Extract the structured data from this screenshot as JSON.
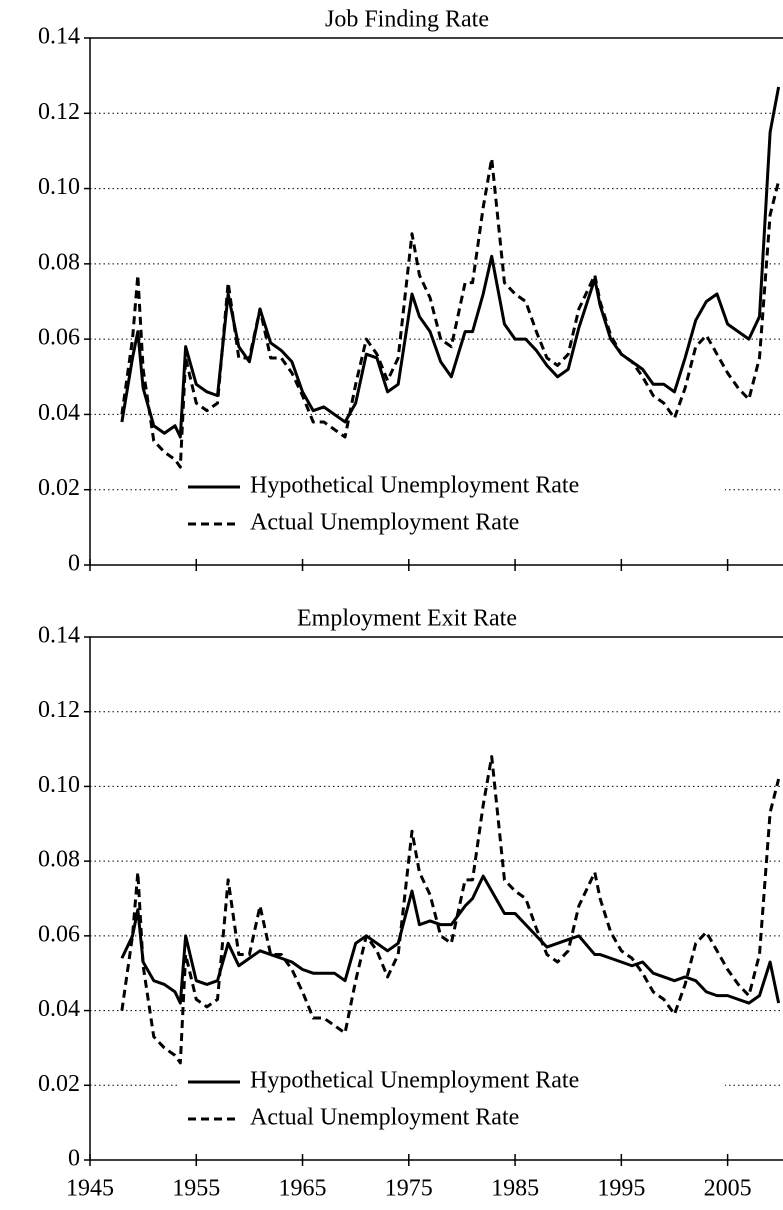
{
  "chart_data": [
    {
      "type": "line",
      "title": "Job Finding Rate",
      "x": [
        1948,
        1949,
        1949.5,
        1950,
        1951,
        1952,
        1953,
        1953.5,
        1954,
        1955,
        1956,
        1957,
        1958,
        1959,
        1960,
        1961,
        1962,
        1963,
        1964,
        1965,
        1966,
        1967,
        1968,
        1969,
        1970,
        1971,
        1972,
        1973,
        1974,
        1975.3,
        1976,
        1977,
        1978,
        1979,
        1980.3,
        1981,
        1982,
        1982.8,
        1984,
        1985,
        1986,
        1987,
        1988,
        1989,
        1990,
        1991,
        1992.5,
        1993,
        1994,
        1995,
        1996,
        1997,
        1998,
        1999,
        2000,
        2001,
        2002,
        2003,
        2004,
        2005,
        2006,
        2007,
        2008,
        2009,
        2009.8
      ],
      "series": [
        {
          "name": "Hypothetical Unemployment Rate",
          "color": "#000000",
          "style": "solid",
          "values": [
            0.038,
            0.055,
            0.062,
            0.047,
            0.037,
            0.035,
            0.037,
            0.034,
            0.058,
            0.048,
            0.046,
            0.045,
            0.072,
            0.058,
            0.054,
            0.068,
            0.059,
            0.057,
            0.054,
            0.046,
            0.041,
            0.042,
            0.04,
            0.038,
            0.043,
            0.056,
            0.055,
            0.046,
            0.048,
            0.072,
            0.066,
            0.062,
            0.054,
            0.05,
            0.062,
            0.062,
            0.072,
            0.082,
            0.064,
            0.06,
            0.06,
            0.057,
            0.053,
            0.05,
            0.052,
            0.063,
            0.076,
            0.069,
            0.06,
            0.056,
            0.054,
            0.052,
            0.048,
            0.048,
            0.046,
            0.055,
            0.065,
            0.07,
            0.072,
            0.064,
            0.062,
            0.06,
            0.066,
            0.115,
            0.127
          ]
        },
        {
          "name": "Actual Unemployment Rate",
          "color": "#000000",
          "style": "dashed",
          "values": [
            0.04,
            0.06,
            0.077,
            0.052,
            0.033,
            0.03,
            0.028,
            0.026,
            0.055,
            0.043,
            0.041,
            0.043,
            0.075,
            0.055,
            0.055,
            0.068,
            0.055,
            0.055,
            0.051,
            0.045,
            0.038,
            0.038,
            0.036,
            0.034,
            0.048,
            0.06,
            0.056,
            0.049,
            0.055,
            0.088,
            0.077,
            0.071,
            0.06,
            0.058,
            0.075,
            0.075,
            0.095,
            0.108,
            0.075,
            0.072,
            0.07,
            0.062,
            0.055,
            0.053,
            0.056,
            0.068,
            0.077,
            0.07,
            0.061,
            0.056,
            0.054,
            0.05,
            0.045,
            0.043,
            0.039,
            0.047,
            0.058,
            0.061,
            0.056,
            0.051,
            0.047,
            0.044,
            0.055,
            0.093,
            0.102
          ]
        }
      ],
      "xlim": [
        1945,
        2012
      ],
      "xticks": [
        1945,
        1955,
        1965,
        1975,
        1985,
        1995,
        2005
      ],
      "show_xtick_labels": false,
      "ylim": [
        0,
        0.14
      ],
      "yticks": [
        0,
        0.02,
        0.04,
        0.06,
        0.08,
        {
          "value": 0.1,
          "label": "0.10"
        },
        0.12,
        0.14
      ],
      "grid": true
    },
    {
      "type": "line",
      "title": "Employment Exit Rate",
      "x": [
        1948,
        1949,
        1949.5,
        1950,
        1951,
        1952,
        1953,
        1953.5,
        1954,
        1955,
        1956,
        1957,
        1958,
        1959,
        1960,
        1961,
        1962,
        1963,
        1964,
        1965,
        1966,
        1967,
        1968,
        1969,
        1970,
        1971,
        1972,
        1973,
        1974,
        1975.3,
        1976,
        1977,
        1978,
        1979,
        1980.3,
        1981,
        1982,
        1982.8,
        1984,
        1985,
        1986,
        1987,
        1988,
        1989,
        1990,
        1991,
        1992.5,
        1993,
        1994,
        1995,
        1996,
        1997,
        1998,
        1999,
        2000,
        2001,
        2002,
        2003,
        2004,
        2005,
        2006,
        2007,
        2008,
        2009,
        2009.8
      ],
      "series": [
        {
          "name": "Hypothetical Unemployment Rate",
          "color": "#000000",
          "style": "solid",
          "values": [
            0.054,
            0.06,
            0.067,
            0.053,
            0.048,
            0.047,
            0.045,
            0.042,
            0.06,
            0.048,
            0.047,
            0.048,
            0.058,
            0.052,
            0.054,
            0.056,
            0.055,
            0.054,
            0.053,
            0.051,
            0.05,
            0.05,
            0.05,
            0.048,
            0.058,
            0.06,
            0.058,
            0.056,
            0.058,
            0.072,
            0.063,
            0.064,
            0.063,
            0.063,
            0.068,
            0.07,
            0.076,
            0.072,
            0.066,
            0.066,
            0.063,
            0.06,
            0.057,
            0.058,
            0.059,
            0.06,
            0.055,
            0.055,
            0.054,
            0.053,
            0.052,
            0.053,
            0.05,
            0.049,
            0.048,
            0.049,
            0.048,
            0.045,
            0.044,
            0.044,
            0.043,
            0.042,
            0.044,
            0.053,
            0.042
          ]
        },
        {
          "name": "Actual Unemployment Rate",
          "color": "#000000",
          "style": "dashed",
          "values": [
            0.04,
            0.06,
            0.077,
            0.052,
            0.033,
            0.03,
            0.028,
            0.026,
            0.055,
            0.043,
            0.041,
            0.043,
            0.075,
            0.055,
            0.055,
            0.068,
            0.055,
            0.055,
            0.051,
            0.045,
            0.038,
            0.038,
            0.036,
            0.034,
            0.048,
            0.06,
            0.056,
            0.049,
            0.055,
            0.088,
            0.077,
            0.071,
            0.06,
            0.058,
            0.075,
            0.075,
            0.095,
            0.108,
            0.075,
            0.072,
            0.07,
            0.062,
            0.055,
            0.053,
            0.056,
            0.068,
            0.077,
            0.07,
            0.061,
            0.056,
            0.054,
            0.05,
            0.045,
            0.043,
            0.039,
            0.047,
            0.058,
            0.061,
            0.056,
            0.051,
            0.047,
            0.044,
            0.055,
            0.093,
            0.102
          ]
        }
      ],
      "xlim": [
        1945,
        2012
      ],
      "xticks": [
        1945,
        1955,
        1965,
        1975,
        1985,
        1995,
        2005
      ],
      "show_xtick_labels": true,
      "ylim": [
        0,
        0.14
      ],
      "yticks": [
        0,
        0.02,
        0.04,
        0.06,
        0.08,
        {
          "value": 0.1,
          "label": "0.10"
        },
        0.12,
        0.14
      ],
      "grid": true
    }
  ]
}
